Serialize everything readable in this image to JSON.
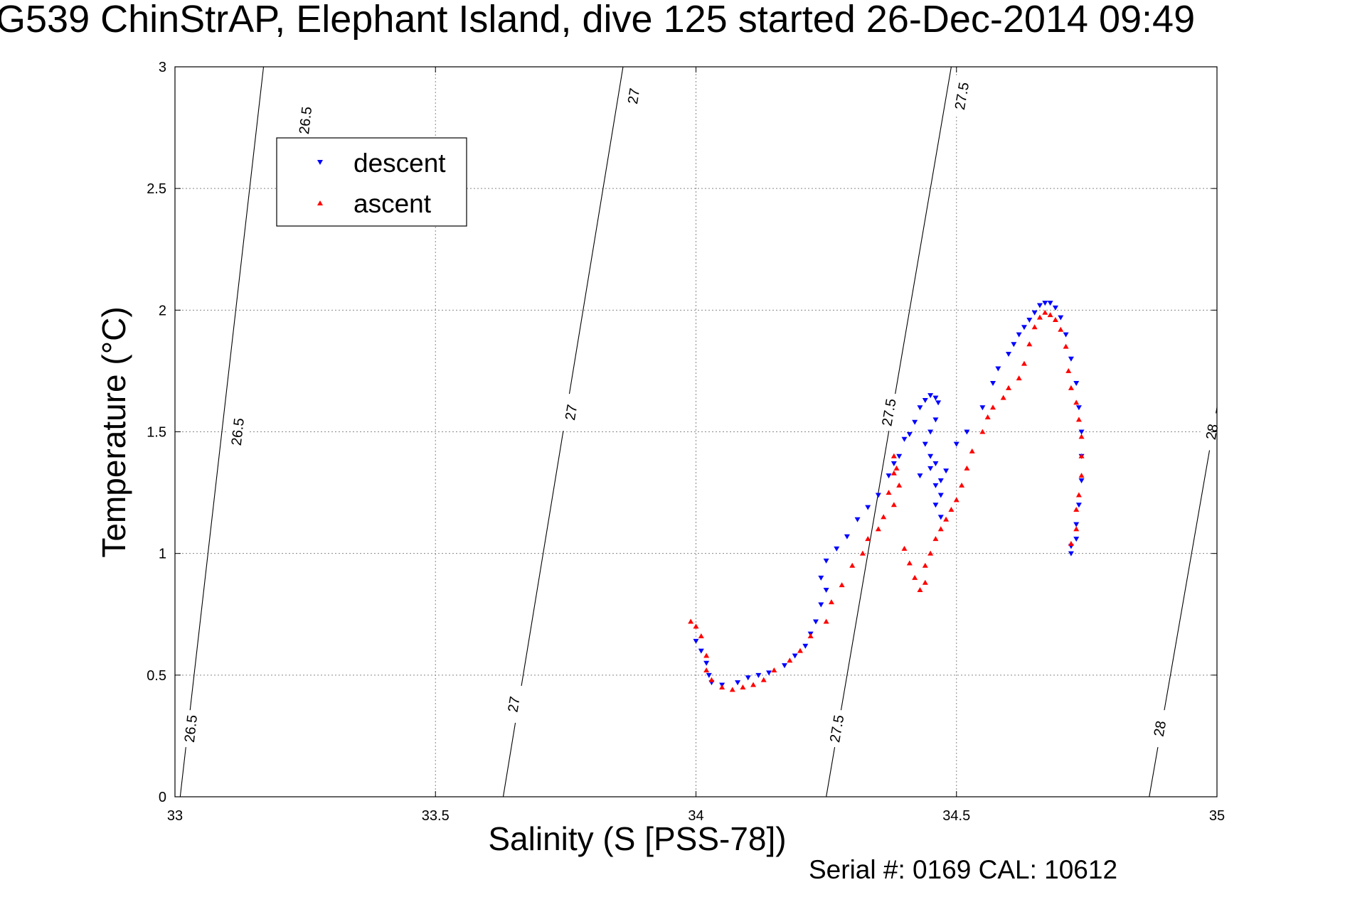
{
  "header": {
    "title": "G539 ChinStrAP, Elephant Island, dive 125 started 26-Dec-2014 09:49",
    "serial": "Serial #: 0169 CAL: 10612"
  },
  "colors": {
    "descent": "#0000ff",
    "ascent": "#ff0000",
    "grid": "#888888",
    "contour": "#000000"
  },
  "chart_data": {
    "type": "scatter",
    "title": "G539 ChinStrAP, Elephant Island, dive 125 started 26-Dec-2014 09:49",
    "xlabel": "Salinity (S [PSS-78])",
    "ylabel": "Temperature (°C)",
    "xlim": [
      33,
      35
    ],
    "ylim": [
      0,
      3
    ],
    "grid": true,
    "legend_position": "top-left",
    "x_ticks": [
      "33",
      "33.5",
      "34",
      "34.5",
      "35"
    ],
    "y_ticks": [
      "0",
      "0.5",
      "1",
      "1.5",
      "2",
      "2.5",
      "3"
    ],
    "marker": "triangle",
    "density_contours": [
      {
        "label": "26.5",
        "points": [
          [
            33.01,
            0.0
          ],
          [
            33.17,
            3.0
          ]
        ],
        "label_positions": [
          [
            33.03,
            0.28
          ],
          [
            33.12,
            1.5
          ],
          [
            33.25,
            2.78
          ]
        ]
      },
      {
        "label": "27",
        "points": [
          [
            33.63,
            0.0
          ],
          [
            33.86,
            3.0
          ]
        ],
        "label_positions": [
          [
            33.65,
            0.38
          ],
          [
            33.76,
            1.58
          ],
          [
            33.88,
            2.88
          ]
        ]
      },
      {
        "label": "27.5",
        "points": [
          [
            34.25,
            0.0
          ],
          [
            34.49,
            3.0
          ]
        ],
        "label_positions": [
          [
            34.27,
            0.28
          ],
          [
            34.37,
            1.58
          ],
          [
            34.51,
            2.88
          ]
        ]
      },
      {
        "label": "28",
        "points": [
          [
            34.87,
            0.0
          ],
          [
            35.0,
            1.6
          ]
        ],
        "label_positions": [
          [
            34.89,
            0.28
          ],
          [
            34.99,
            1.5
          ]
        ]
      }
    ],
    "series": [
      {
        "name": "descent",
        "marker": "triangle-down",
        "points": [
          [
            34.0,
            0.64
          ],
          [
            34.01,
            0.6
          ],
          [
            34.02,
            0.55
          ],
          [
            34.025,
            0.5
          ],
          [
            34.03,
            0.47
          ],
          [
            34.05,
            0.46
          ],
          [
            34.08,
            0.47
          ],
          [
            34.1,
            0.49
          ],
          [
            34.12,
            0.5
          ],
          [
            34.14,
            0.51
          ],
          [
            34.17,
            0.54
          ],
          [
            34.19,
            0.58
          ],
          [
            34.21,
            0.62
          ],
          [
            34.22,
            0.67
          ],
          [
            34.23,
            0.72
          ],
          [
            34.24,
            0.79
          ],
          [
            34.25,
            0.85
          ],
          [
            34.24,
            0.9
          ],
          [
            34.25,
            0.97
          ],
          [
            34.27,
            1.02
          ],
          [
            34.29,
            1.07
          ],
          [
            34.31,
            1.14
          ],
          [
            34.33,
            1.19
          ],
          [
            34.35,
            1.24
          ],
          [
            34.37,
            1.32
          ],
          [
            34.38,
            1.37
          ],
          [
            34.39,
            1.4
          ],
          [
            34.4,
            1.47
          ],
          [
            34.41,
            1.49
          ],
          [
            34.42,
            1.54
          ],
          [
            34.43,
            1.6
          ],
          [
            34.44,
            1.63
          ],
          [
            34.45,
            1.65
          ],
          [
            34.46,
            1.64
          ],
          [
            34.465,
            1.62
          ],
          [
            34.46,
            1.55
          ],
          [
            34.45,
            1.5
          ],
          [
            34.44,
            1.45
          ],
          [
            34.45,
            1.4
          ],
          [
            34.46,
            1.37
          ],
          [
            34.48,
            1.34
          ],
          [
            34.47,
            1.3
          ],
          [
            34.46,
            1.28
          ],
          [
            34.47,
            1.24
          ],
          [
            34.46,
            1.2
          ],
          [
            34.47,
            1.15
          ],
          [
            34.43,
            1.32
          ],
          [
            34.45,
            1.35
          ],
          [
            34.5,
            1.45
          ],
          [
            34.52,
            1.5
          ],
          [
            34.55,
            1.6
          ],
          [
            34.57,
            1.7
          ],
          [
            34.58,
            1.76
          ],
          [
            34.6,
            1.82
          ],
          [
            34.61,
            1.86
          ],
          [
            34.62,
            1.9
          ],
          [
            34.63,
            1.93
          ],
          [
            34.64,
            1.96
          ],
          [
            34.65,
            1.99
          ],
          [
            34.66,
            2.02
          ],
          [
            34.67,
            2.03
          ],
          [
            34.68,
            2.03
          ],
          [
            34.69,
            2.01
          ],
          [
            34.7,
            1.97
          ],
          [
            34.71,
            1.9
          ],
          [
            34.72,
            1.8
          ],
          [
            34.73,
            1.7
          ],
          [
            34.735,
            1.6
          ],
          [
            34.74,
            1.5
          ],
          [
            34.74,
            1.4
          ],
          [
            34.74,
            1.3
          ],
          [
            34.735,
            1.2
          ],
          [
            34.73,
            1.12
          ],
          [
            34.73,
            1.06
          ],
          [
            34.72,
            1.03
          ],
          [
            34.72,
            1.0
          ]
        ]
      },
      {
        "name": "ascent",
        "marker": "triangle-up",
        "points": [
          [
            33.99,
            0.72
          ],
          [
            34.0,
            0.7
          ],
          [
            34.01,
            0.66
          ],
          [
            34.02,
            0.58
          ],
          [
            34.02,
            0.52
          ],
          [
            34.03,
            0.48
          ],
          [
            34.05,
            0.45
          ],
          [
            34.07,
            0.44
          ],
          [
            34.09,
            0.45
          ],
          [
            34.11,
            0.46
          ],
          [
            34.13,
            0.48
          ],
          [
            34.15,
            0.52
          ],
          [
            34.18,
            0.56
          ],
          [
            34.2,
            0.6
          ],
          [
            34.22,
            0.66
          ],
          [
            34.25,
            0.72
          ],
          [
            34.26,
            0.8
          ],
          [
            34.28,
            0.87
          ],
          [
            34.3,
            0.95
          ],
          [
            34.32,
            1.0
          ],
          [
            34.33,
            1.06
          ],
          [
            34.35,
            1.1
          ],
          [
            34.36,
            1.15
          ],
          [
            34.37,
            1.25
          ],
          [
            34.38,
            1.33
          ],
          [
            34.38,
            1.4
          ],
          [
            34.385,
            1.35
          ],
          [
            34.39,
            1.28
          ],
          [
            34.38,
            1.2
          ],
          [
            34.4,
            1.02
          ],
          [
            34.41,
            0.96
          ],
          [
            34.42,
            0.9
          ],
          [
            34.43,
            0.85
          ],
          [
            34.44,
            0.88
          ],
          [
            34.44,
            0.95
          ],
          [
            34.45,
            1.0
          ],
          [
            34.46,
            1.06
          ],
          [
            34.47,
            1.1
          ],
          [
            34.48,
            1.14
          ],
          [
            34.49,
            1.18
          ],
          [
            34.5,
            1.22
          ],
          [
            34.51,
            1.28
          ],
          [
            34.52,
            1.35
          ],
          [
            34.53,
            1.42
          ],
          [
            34.55,
            1.5
          ],
          [
            34.56,
            1.56
          ],
          [
            34.57,
            1.6
          ],
          [
            34.59,
            1.64
          ],
          [
            34.6,
            1.68
          ],
          [
            34.62,
            1.72
          ],
          [
            34.63,
            1.78
          ],
          [
            34.64,
            1.86
          ],
          [
            34.65,
            1.93
          ],
          [
            34.66,
            1.97
          ],
          [
            34.67,
            1.99
          ],
          [
            34.68,
            1.98
          ],
          [
            34.69,
            1.96
          ],
          [
            34.7,
            1.92
          ],
          [
            34.71,
            1.85
          ],
          [
            34.715,
            1.75
          ],
          [
            34.72,
            1.68
          ],
          [
            34.73,
            1.62
          ],
          [
            34.735,
            1.55
          ],
          [
            34.74,
            1.48
          ],
          [
            34.74,
            1.4
          ],
          [
            34.74,
            1.32
          ],
          [
            34.735,
            1.24
          ],
          [
            34.73,
            1.18
          ],
          [
            34.73,
            1.1
          ],
          [
            34.72,
            1.04
          ]
        ]
      }
    ]
  }
}
